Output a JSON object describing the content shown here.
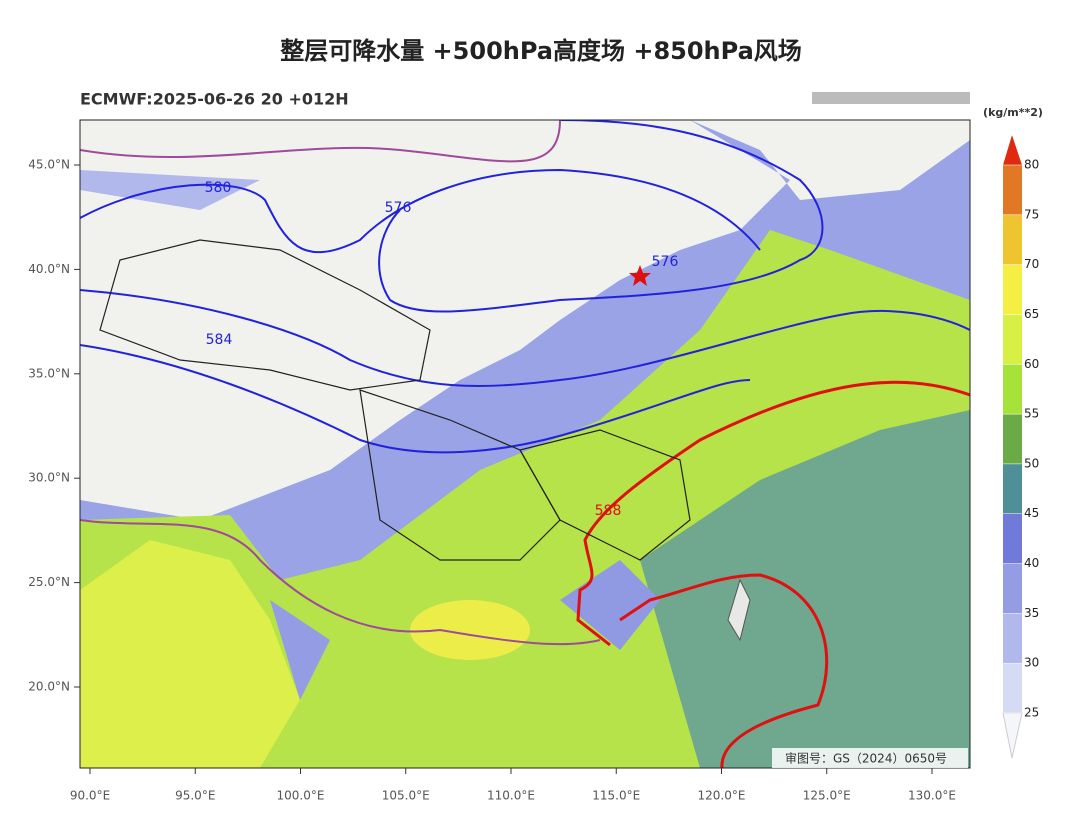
{
  "title": "整层可降水量 +500hPa高度场 +850hPa风场",
  "subtitle": "ECMWF:2025-06-26 20 +012H",
  "lat_labels": [
    {
      "value": 45,
      "label": "45.0°N"
    },
    {
      "value": 40,
      "label": "40.0°N"
    },
    {
      "value": 35,
      "label": "35.0°N"
    },
    {
      "value": 30,
      "label": "30.0°N"
    },
    {
      "value": 25,
      "label": "25.0°N"
    },
    {
      "value": 20,
      "label": "20.0°N"
    }
  ],
  "lon_labels": [
    {
      "value": 90,
      "label": "90.0°E"
    },
    {
      "value": 95,
      "label": "95.0°E"
    },
    {
      "value": 100,
      "label": "100.0°E"
    },
    {
      "value": 105,
      "label": "105.0°E"
    },
    {
      "value": 110,
      "label": "110.0°E"
    },
    {
      "value": 115,
      "label": "115.0°E"
    },
    {
      "value": 120,
      "label": "120.0°E"
    },
    {
      "value": 125,
      "label": "125.0°E"
    },
    {
      "value": 130,
      "label": "130.0°E"
    }
  ],
  "contour_labels": [
    "580",
    "576",
    "576",
    "584",
    "588"
  ],
  "colorbar": {
    "unit": "(kg/m**2)",
    "ticks": [
      25,
      30,
      35,
      40,
      45,
      50,
      55,
      60,
      65,
      70,
      75,
      80
    ],
    "colors": [
      "#f4f6fc",
      "#d4dbf3",
      "#b0b8ec",
      "#949de4",
      "#6f7ad9",
      "#4f8f98",
      "#6aab48",
      "#a6e33a",
      "#d6f046",
      "#f5ef45",
      "#eec430",
      "#e07826",
      "#e02a10"
    ]
  },
  "approval": "审图号：GS（2024）0650号"
}
